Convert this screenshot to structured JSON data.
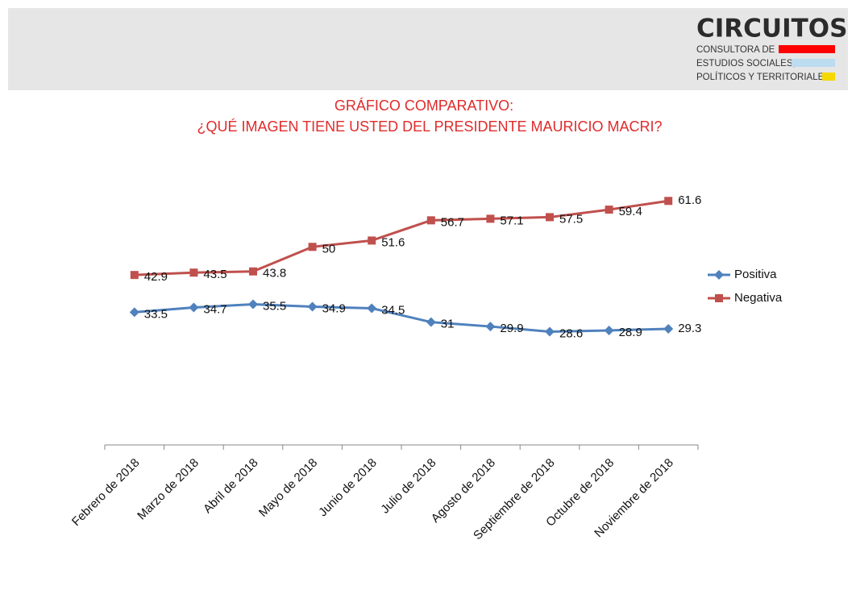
{
  "header": {
    "logo": "CIRCUITOS",
    "logo_lines": [
      "CONSULTORA DE",
      "ESTUDIOS SOCIALES,",
      "POLÍTICOS Y TERRITORIALES"
    ]
  },
  "chart_data": {
    "type": "line",
    "title": "GRÁFICO COMPARATIVO:",
    "subtitle": "¿QUÉ IMAGEN TIENE USTED DEL PRESIDENTE MAURICIO MACRI?",
    "categories": [
      "Febrero de 2018",
      "Marzo de 2018",
      "Abril de 2018",
      "Mayo de 2018",
      "Junio de 2018",
      "Julio de 2018",
      "Agosto de 2018",
      "Septiembre de 2018",
      "Octubre de 2018",
      "Noviembre de 2018"
    ],
    "series": [
      {
        "name": "Positiva",
        "color": "#4f81bd",
        "marker": "diamond",
        "values": [
          33.5,
          34.7,
          35.5,
          34.9,
          34.5,
          31,
          29.9,
          28.6,
          28.9,
          29.3
        ]
      },
      {
        "name": "Negativa",
        "color": "#c0504d",
        "marker": "square",
        "values": [
          42.9,
          43.5,
          43.8,
          50,
          51.6,
          56.7,
          57.1,
          57.5,
          59.4,
          61.6
        ]
      }
    ],
    "ylim": [
      0,
      70
    ],
    "legend": "right"
  }
}
